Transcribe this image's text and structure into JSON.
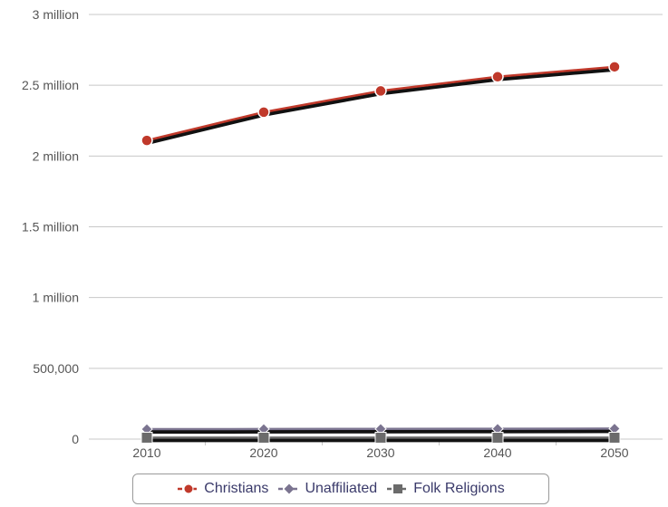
{
  "chart_data": {
    "type": "line",
    "title": "",
    "xlabel": "",
    "ylabel": "",
    "categories": [
      "2010",
      "2020",
      "2030",
      "2040",
      "2050"
    ],
    "ylim": [
      0,
      3000000
    ],
    "yticks": [
      0,
      500000,
      1000000,
      1500000,
      2000000,
      2500000,
      3000000
    ],
    "ytick_labels": [
      "0",
      "500,000",
      "1 million",
      "1.5 million",
      "2 million",
      "2.5 million",
      "3 million"
    ],
    "grid": "horizontal",
    "legend_position": "bottom-center",
    "series": [
      {
        "name": "Christians",
        "values": [
          2110000,
          2310000,
          2460000,
          2560000,
          2630000
        ],
        "color": "#c0392b",
        "marker": "circle"
      },
      {
        "name": "Unaffiliated",
        "values": [
          70000,
          71000,
          72000,
          73000,
          74000
        ],
        "color": "#7b7490",
        "marker": "diamond"
      },
      {
        "name": "Folk Religions",
        "values": [
          10000,
          10000,
          10000,
          10000,
          10000
        ],
        "color": "#6b6b6b",
        "marker": "square"
      }
    ]
  }
}
